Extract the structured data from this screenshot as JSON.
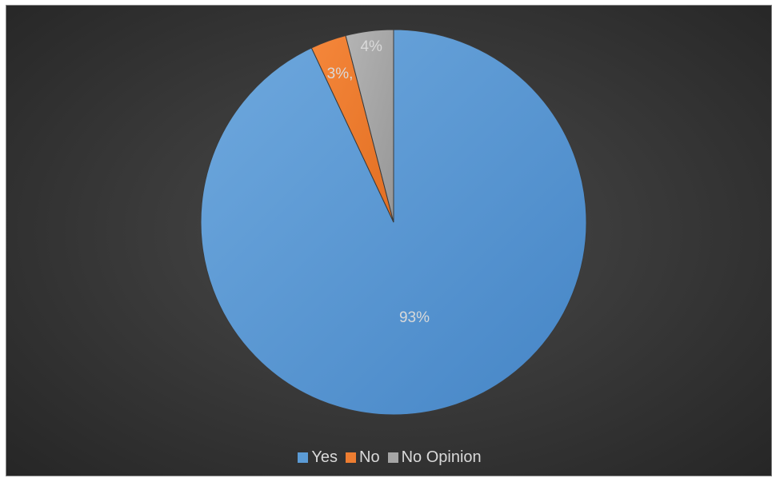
{
  "chart_data": {
    "type": "pie",
    "title": "",
    "slices": [
      {
        "label": "Yes",
        "value": 93,
        "data_label": "93%",
        "color": "#5b9bd5"
      },
      {
        "label": "No",
        "value": 3,
        "data_label": "3%,",
        "color": "#ed7d31"
      },
      {
        "label": "No Opinion",
        "value": 4,
        "data_label": "4%",
        "color": "#a5a5a5"
      }
    ],
    "legend_position": "bottom",
    "start_angle": "12 o'clock, clockwise",
    "background": "#3a3a3a"
  }
}
